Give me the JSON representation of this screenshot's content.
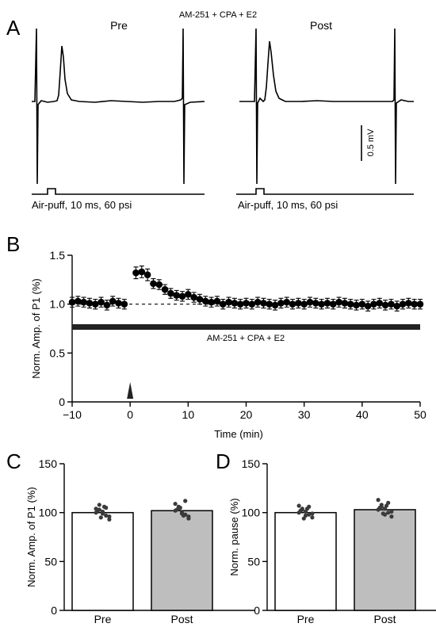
{
  "panels": {
    "a": {
      "letter": "A",
      "title": "AM-251 + CPA + E2",
      "pre": "Pre",
      "post": "Post",
      "stim_label": "Air-puff, 10 ms, 60 psi",
      "scale_label": "0.5 mV",
      "scale_value_mV": 0.5
    },
    "b": {
      "letter": "B",
      "bar_label": "AM-251 + CPA + E2"
    },
    "c": {
      "letter": "C"
    },
    "d": {
      "letter": "D"
    }
  },
  "chart_data": [
    {
      "panel": "B",
      "type": "scatter",
      "xlabel": "Time (min)",
      "ylabel": "Norm. Amp. of P1 (%)",
      "xlim": [
        -10,
        50
      ],
      "ylim": [
        0,
        1.5
      ],
      "xticks": [
        -10,
        0,
        10,
        20,
        30,
        40,
        50
      ],
      "yticks": [
        0,
        0.5,
        1.0,
        1.5
      ],
      "yticklabels": [
        "0",
        "0.5",
        "1.0",
        "1.5"
      ],
      "baseline": 1.0,
      "stimulus_time": 0,
      "series": [
        {
          "x": [
            -10,
            -9,
            -8,
            -7,
            -6,
            -5,
            -4,
            -3,
            -2,
            -1,
            1,
            2,
            3,
            4,
            5,
            6,
            7,
            8,
            9,
            10,
            11,
            12,
            13,
            14,
            15,
            16,
            17,
            18,
            19,
            20,
            21,
            22,
            23,
            24,
            25,
            26,
            27,
            28,
            29,
            30,
            31,
            32,
            33,
            34,
            35,
            36,
            37,
            38,
            39,
            40,
            41,
            42,
            43,
            44,
            45,
            46,
            47,
            48,
            49,
            50
          ],
          "y": [
            1.02,
            1.03,
            1.02,
            1.01,
            1.0,
            1.02,
            0.99,
            1.03,
            1.01,
            1.0,
            1.32,
            1.33,
            1.3,
            1.21,
            1.2,
            1.15,
            1.11,
            1.09,
            1.08,
            1.1,
            1.07,
            1.05,
            1.03,
            1.02,
            1.03,
            1.0,
            1.02,
            1.01,
            1.0,
            1.01,
            1.0,
            1.02,
            1.01,
            1.0,
            0.99,
            1.01,
            1.02,
            1.0,
            1.01,
            1.0,
            1.02,
            1.01,
            1.0,
            1.01,
            1.0,
            1.02,
            1.01,
            1.0,
            0.99,
            1.0,
            0.98,
            1.0,
            1.01,
            0.99,
            1.0,
            0.98,
            1.0,
            1.01,
            1.0,
            1.0
          ],
          "err": [
            0.05,
            0.05,
            0.05,
            0.05,
            0.05,
            0.05,
            0.05,
            0.05,
            0.05,
            0.05,
            0.06,
            0.06,
            0.06,
            0.05,
            0.05,
            0.05,
            0.05,
            0.05,
            0.05,
            0.05,
            0.05,
            0.05,
            0.05,
            0.05,
            0.05,
            0.05,
            0.05,
            0.05,
            0.05,
            0.05,
            0.05,
            0.05,
            0.05,
            0.05,
            0.05,
            0.05,
            0.05,
            0.05,
            0.05,
            0.05,
            0.05,
            0.05,
            0.05,
            0.05,
            0.05,
            0.05,
            0.05,
            0.05,
            0.05,
            0.05,
            0.05,
            0.05,
            0.05,
            0.05,
            0.05,
            0.05,
            0.05,
            0.05,
            0.05,
            0.05
          ]
        }
      ]
    },
    {
      "panel": "C",
      "type": "bar",
      "categories": [
        "Pre",
        "Post"
      ],
      "values": [
        100,
        102
      ],
      "colors": [
        "#ffffff",
        "#bebebe"
      ],
      "ylabel": "Norm. Amp. of P1 (%)",
      "ylim": [
        0,
        150
      ],
      "yticks": [
        0,
        50,
        100,
        150
      ],
      "points": [
        [
          104,
          108,
          101,
          97,
          93,
          100,
          103,
          99,
          105,
          96,
          102,
          95,
          106
        ],
        [
          109,
          104,
          100,
          98,
          94,
          102,
          106,
          99,
          112,
          96,
          103,
          105,
          97
        ]
      ]
    },
    {
      "panel": "D",
      "type": "bar",
      "categories": [
        "Pre",
        "Post"
      ],
      "values": [
        100,
        103
      ],
      "colors": [
        "#ffffff",
        "#bebebe"
      ],
      "ylabel": "Norm. pause (%)",
      "ylim": [
        0,
        150
      ],
      "yticks": [
        0,
        50,
        100,
        150
      ],
      "points": [
        [
          107,
          104,
          101,
          98,
          95,
          100,
          103,
          97,
          106,
          99,
          102,
          94,
          104
        ],
        [
          113,
          108,
          104,
          100,
          96,
          103,
          106,
          98,
          110,
          101,
          105,
          99,
          107
        ]
      ]
    }
  ]
}
